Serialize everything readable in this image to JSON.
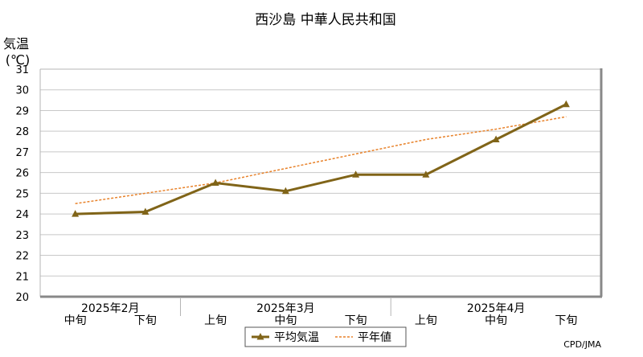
{
  "chart_data": {
    "type": "line",
    "title": "西沙島 中華人民共和国",
    "ylabel": "気温",
    "yunit": "(℃)",
    "ylim": [
      20,
      31
    ],
    "yticks": [
      20,
      21,
      22,
      23,
      24,
      25,
      26,
      27,
      28,
      29,
      30,
      31
    ],
    "grid": true,
    "legend_position": "bottom-center",
    "categories": [
      "中旬",
      "下旬",
      "上旬",
      "中旬",
      "下旬",
      "上旬",
      "中旬",
      "下旬"
    ],
    "month_groups": [
      {
        "label": "2025年2月",
        "start": 0,
        "end": 1
      },
      {
        "label": "2025年3月",
        "start": 2,
        "end": 4
      },
      {
        "label": "2025年4月",
        "start": 5,
        "end": 7
      }
    ],
    "series": [
      {
        "name": "平均気温",
        "style": "solid-marker",
        "color": "#806418",
        "values": [
          24.0,
          24.1,
          25.5,
          25.1,
          25.9,
          25.9,
          27.6,
          29.3
        ]
      },
      {
        "name": "平年値",
        "style": "dotted",
        "color": "#e8822a",
        "values": [
          24.5,
          25.0,
          25.5,
          26.2,
          26.9,
          27.6,
          28.1,
          28.7
        ]
      }
    ],
    "credit": "CPD/JMA"
  }
}
